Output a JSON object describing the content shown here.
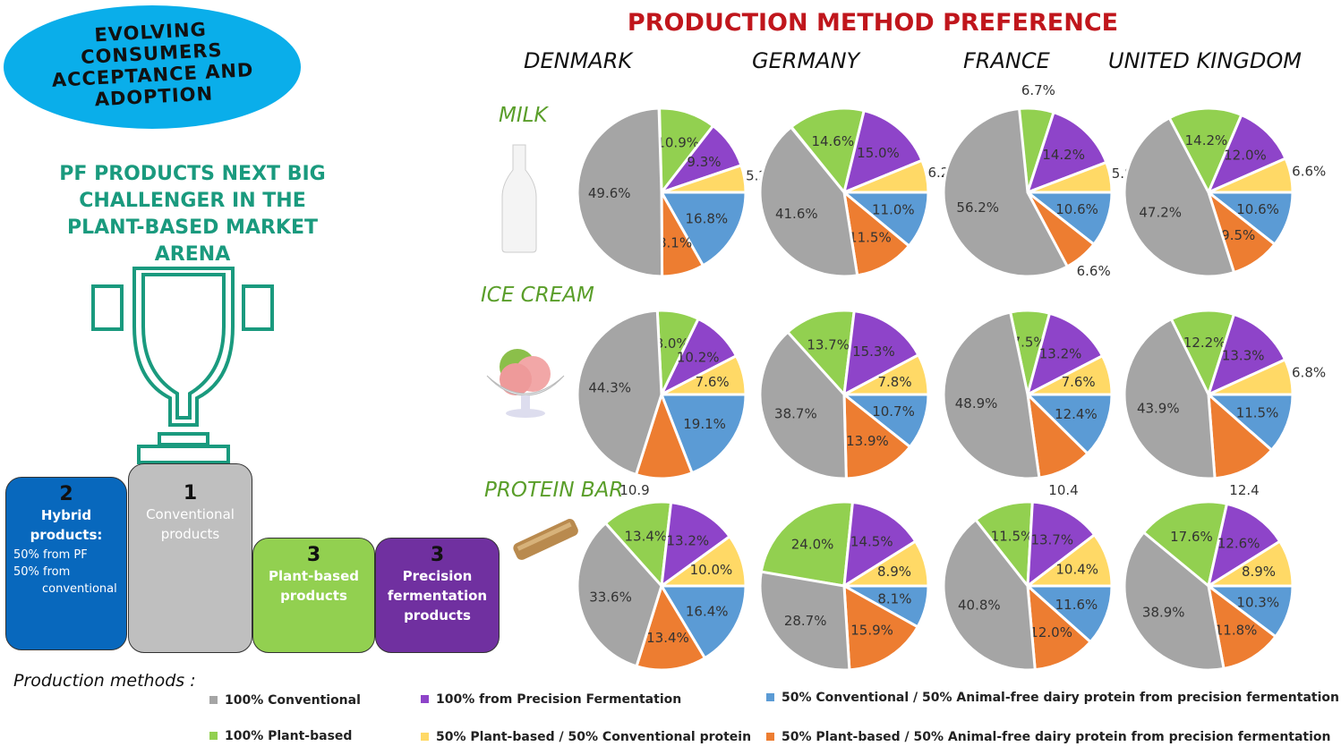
{
  "header": {
    "badge": "EVOLVING CONSUMERS ACCEPTANCE AND ADOPTION",
    "subtitle": "PF PRODUCTS NEXT BIG CHALLENGER IN THE PLANT-BASED MARKET ARENA"
  },
  "podium": [
    {
      "rank": "2",
      "title": "Hybrid products:",
      "lines": [
        "50% from PF",
        "50% from",
        "conventional"
      ],
      "color": "#0868bd"
    },
    {
      "rank": "1",
      "title": "Conventional products",
      "color": "#bfbfbf"
    },
    {
      "rank": "3",
      "title": "Plant-based products",
      "color": "#92d050"
    },
    {
      "rank": "3",
      "title": "Precision fermentation products",
      "color": "#7030a0"
    }
  ],
  "chart_data": {
    "type": "pie",
    "title": "PRODUCTION METHOD PREFERENCE",
    "countries": [
      "DENMARK",
      "GERMANY",
      "FRANCE",
      "UNITED KINGDOM"
    ],
    "products": [
      "MILK",
      "ICE CREAM",
      "PROTEIN BAR"
    ],
    "series_order": [
      "100% Plant-based",
      "100% from Precision Fermentation",
      "50% Plant-based / 50% Conventional protein",
      "50% Conventional / 50% Animal-free dairy protein from precision fermentation",
      "50% Plant-based / 50% Animal-free dairy protein from precision fermentation",
      "100% Conventional"
    ],
    "colors": [
      "#92d050",
      "#8e44c9",
      "#ffd966",
      "#5b9bd5",
      "#ed7d31",
      "#a5a5a5"
    ],
    "pies": [
      [
        {
          "values": [
            10.9,
            9.3,
            5.2,
            16.8,
            8.1,
            49.6
          ]
        },
        {
          "values": [
            14.6,
            15.0,
            6.2,
            11.0,
            11.5,
            41.6
          ]
        },
        {
          "values": [
            6.7,
            14.2,
            5.8,
            10.6,
            6.6,
            56.2
          ]
        },
        {
          "values": [
            14.2,
            12.0,
            6.6,
            10.6,
            9.5,
            47.2
          ]
        }
      ],
      [
        {
          "values": [
            8.0,
            10.2,
            7.6,
            19.1,
            10.8,
            44.3
          ],
          "hidden": [
            4
          ]
        },
        {
          "values": [
            13.7,
            15.3,
            7.8,
            10.7,
            13.9,
            38.7
          ]
        },
        {
          "values": [
            7.5,
            13.2,
            7.6,
            12.4,
            10.4,
            48.9
          ],
          "hidden": [
            4
          ]
        },
        {
          "values": [
            12.2,
            13.3,
            6.8,
            11.5,
            12.3,
            43.9
          ],
          "hidden": [
            4
          ]
        }
      ],
      [
        {
          "values": [
            13.4,
            13.2,
            10.0,
            16.4,
            13.4,
            33.6
          ],
          "extra": "10.9"
        },
        {
          "values": [
            24.0,
            14.5,
            8.9,
            8.1,
            15.9,
            28.7
          ]
        },
        {
          "values": [
            11.5,
            13.7,
            10.4,
            11.6,
            12.0,
            40.8
          ],
          "extra": "10.4"
        },
        {
          "values": [
            17.6,
            12.6,
            8.9,
            10.3,
            11.8,
            38.9
          ],
          "extra": "12.4"
        }
      ]
    ]
  },
  "legend": {
    "title": "Production methods :",
    "items": [
      {
        "label": "100% Conventional",
        "color": "#a5a5a5"
      },
      {
        "label": "100% from Precision Fermentation",
        "color": "#8e44c9"
      },
      {
        "label": "50% Conventional / 50% Animal-free dairy protein from precision fermentation",
        "color": "#5b9bd5"
      },
      {
        "label": "100% Plant-based",
        "color": "#92d050"
      },
      {
        "label": "50% Plant-based / 50% Conventional protein",
        "color": "#ffd966"
      },
      {
        "label": "50% Plant-based / 50% Animal-free dairy protein from precision fermentation",
        "color": "#ed7d31"
      }
    ]
  }
}
